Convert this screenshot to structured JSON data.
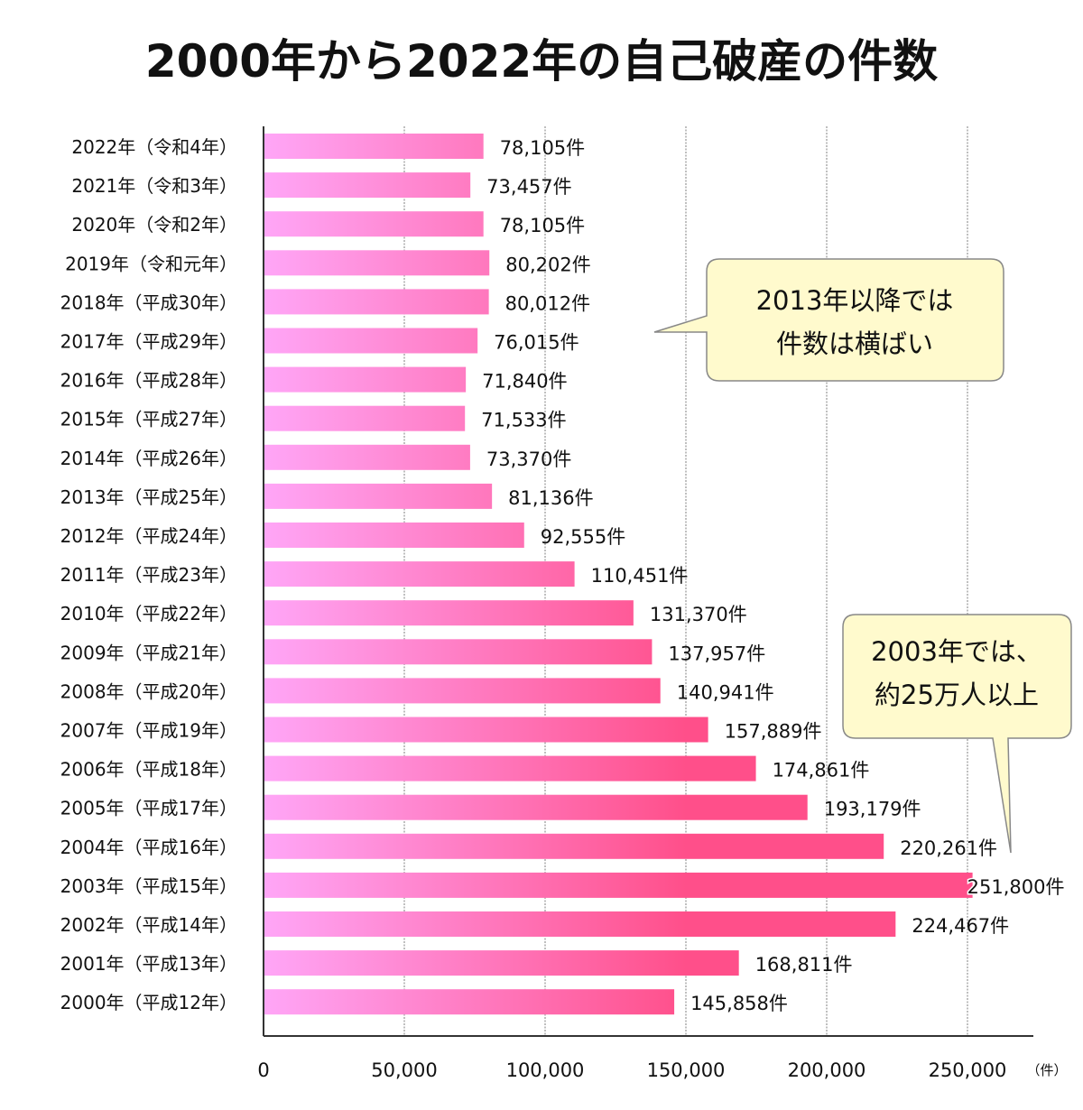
{
  "chart_data": {
    "type": "bar",
    "orientation": "horizontal",
    "title": "2000年から2022年の自己破産の件数",
    "xlabel": "",
    "unit_label": "（件）",
    "value_suffix": "件",
    "xlim": [
      0,
      250000
    ],
    "xticks": [
      0,
      50000,
      100000,
      150000,
      200000,
      250000
    ],
    "xtick_labels": [
      "0",
      "50,000",
      "100,000",
      "150,000",
      "200,000",
      "250,000"
    ],
    "grid": true,
    "categories": [
      "2022年（令和4年）",
      "2021年（令和3年）",
      "2020年（令和2年）",
      "2019年（令和元年）",
      "2018年（平成30年）",
      "2017年（平成29年）",
      "2016年（平成28年）",
      "2015年（平成27年）",
      "2014年（平成26年）",
      "2013年（平成25年）",
      "2012年（平成24年）",
      "2011年（平成23年）",
      "2010年（平成22年）",
      "2009年（平成21年）",
      "2008年（平成20年）",
      "2007年（平成19年）",
      "2006年（平成18年）",
      "2005年（平成17年）",
      "2004年（平成16年）",
      "2003年（平成15年）",
      "2002年（平成14年）",
      "2001年（平成13年）",
      "2000年（平成12年）"
    ],
    "values": [
      78105,
      73457,
      78105,
      80202,
      80012,
      76015,
      71840,
      71533,
      73370,
      81136,
      92555,
      110451,
      131370,
      137957,
      140941,
      157889,
      174861,
      193179,
      220261,
      251800,
      224467,
      168811,
      145858
    ],
    "value_labels": [
      "78,105件",
      "73,457件",
      "78,105件",
      "80,202件",
      "80,012件",
      "76,015件",
      "71,840件",
      "71,533件",
      "73,370件",
      "81,136件",
      "92,555件",
      "110,451件",
      "131,370件",
      "137,957件",
      "140,941件",
      "157,889件",
      "174,861件",
      "193,179件",
      "220,261件",
      "251,800件",
      "224,467件",
      "168,811件",
      "145,858件"
    ],
    "annotations": [
      {
        "text_lines": [
          "2013年以降では",
          "件数は横ばい"
        ],
        "target_category": "2017年（平成29年）"
      },
      {
        "text_lines": [
          "2003年では、",
          "約25万人以上"
        ],
        "target_category": "2004年（平成16年）"
      }
    ],
    "colors": {
      "bar_gradient_start": "#ffa6f7",
      "bar_gradient_end": "#ff4f8a",
      "callout_fill": "#fffacd",
      "callout_stroke": "#888888",
      "axis": "#333333",
      "grid": "#aaaaaa"
    }
  }
}
